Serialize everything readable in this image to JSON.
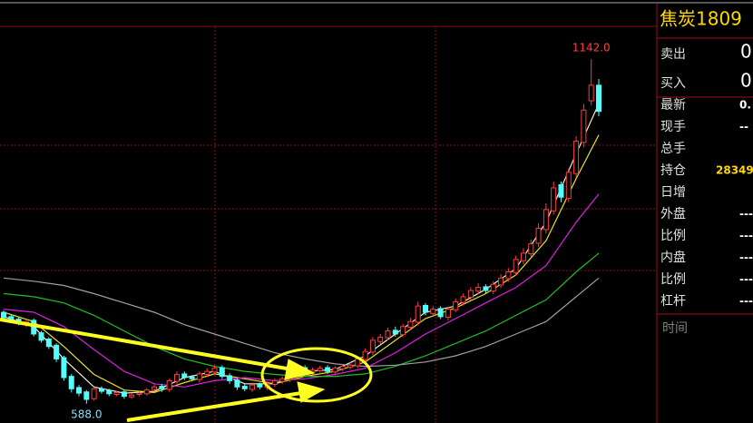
{
  "chart_data": {
    "type": "candlestick",
    "up_color": "#ff3c3c",
    "down_color": "#54fcfc",
    "ylim": [
      557,
      1237
    ],
    "open": [
      735,
      728,
      724,
      715,
      722,
      702,
      692,
      682,
      662,
      632,
      614,
      607,
      596,
      612,
      609,
      603,
      607,
      599,
      603,
      604,
      611,
      616,
      611,
      624,
      636,
      631,
      627,
      635,
      639,
      646,
      633,
      626,
      616,
      611,
      619,
      614,
      619,
      624,
      627,
      637,
      646,
      639,
      641,
      646,
      639,
      644,
      647,
      649,
      659,
      671,
      688,
      694,
      706,
      699,
      711,
      719,
      746,
      733,
      741,
      727,
      739,
      751,
      759,
      769,
      776,
      769,
      779,
      789,
      799,
      818,
      829,
      846,
      868,
      898,
      940,
      918,
      958,
      1008,
      1075,
      1100
    ],
    "high": [
      738,
      731,
      727,
      724,
      725,
      705,
      695,
      685,
      665,
      636,
      618,
      610,
      615,
      616,
      612,
      609,
      610,
      605,
      608,
      613,
      619,
      620,
      628,
      640,
      640,
      634,
      640,
      645,
      650,
      650,
      637,
      629,
      620,
      622,
      622,
      624,
      629,
      632,
      642,
      650,
      650,
      646,
      649,
      650,
      648,
      652,
      654,
      664,
      677,
      695,
      700,
      710,
      712,
      716,
      726,
      752,
      750,
      745,
      745,
      744,
      757,
      765,
      775,
      782,
      780,
      785,
      796,
      806,
      826,
      838,
      852,
      878,
      910,
      945,
      945,
      966,
      1018,
      1070,
      1142,
      1110
    ],
    "low": [
      722,
      718,
      714,
      711,
      696,
      686,
      676,
      655,
      625,
      606,
      600,
      588,
      593,
      604,
      600,
      600,
      596,
      596,
      600,
      601,
      608,
      607,
      607,
      620,
      626,
      624,
      622,
      631,
      635,
      628,
      620,
      610,
      608,
      607,
      611,
      610,
      615,
      620,
      623,
      633,
      636,
      635,
      638,
      636,
      635,
      640,
      643,
      645,
      655,
      666,
      684,
      690,
      696,
      695,
      706,
      714,
      730,
      729,
      724,
      722,
      735,
      746,
      754,
      764,
      765,
      764,
      774,
      784,
      794,
      812,
      824,
      840,
      862,
      892,
      912,
      912,
      952,
      1000,
      1068,
      1050
    ],
    "close": [
      726,
      722,
      718,
      720,
      700,
      690,
      680,
      660,
      630,
      612,
      605,
      595,
      612,
      608,
      604,
      606,
      600,
      602,
      605,
      610,
      615,
      612,
      625,
      635,
      630,
      628,
      636,
      640,
      645,
      632,
      625,
      615,
      612,
      618,
      615,
      620,
      625,
      628,
      638,
      645,
      640,
      642,
      645,
      640,
      645,
      648,
      650,
      660,
      672,
      690,
      695,
      705,
      700,
      712,
      720,
      745,
      735,
      740,
      728,
      740,
      752,
      760,
      770,
      775,
      770,
      780,
      790,
      800,
      820,
      830,
      845,
      870,
      900,
      935,
      920,
      960,
      1010,
      1060,
      1100,
      1058
    ],
    "moving_averages": [
      {
        "color": "#f0f0d0",
        "x": [
          0,
          4,
          8,
          12,
          16,
          20,
          24,
          28,
          32,
          36,
          40,
          44,
          48,
          52,
          56,
          60,
          64,
          68,
          72,
          76,
          79
        ],
        "values": [
          728,
          712,
          660,
          615,
          605,
          608,
          630,
          640,
          620,
          620,
          640,
          643,
          665,
          700,
          735,
          745,
          772,
          805,
          880,
          990,
          1070
        ]
      },
      {
        "color": "#e8e020",
        "x": [
          0,
          4,
          8,
          12,
          16,
          20,
          24,
          28,
          32,
          36,
          40,
          44,
          48,
          52,
          56,
          60,
          64,
          68,
          72,
          76,
          79
        ],
        "values": [
          735,
          720,
          680,
          635,
          610,
          606,
          622,
          636,
          628,
          620,
          632,
          640,
          655,
          690,
          725,
          742,
          765,
          795,
          850,
          950,
          1020
        ]
      },
      {
        "color": "#e020e0",
        "x": [
          0,
          4,
          8,
          12,
          16,
          20,
          24,
          28,
          32,
          36,
          40,
          44,
          48,
          52,
          56,
          60,
          64,
          68,
          72,
          76,
          79
        ],
        "values": [
          740,
          735,
          712,
          675,
          640,
          620,
          615,
          625,
          630,
          625,
          628,
          635,
          645,
          670,
          700,
          725,
          750,
          775,
          810,
          880,
          925
        ]
      },
      {
        "color": "#20c020",
        "x": [
          0,
          4,
          8,
          12,
          16,
          20,
          24,
          28,
          32,
          36,
          40,
          44,
          48,
          52,
          56,
          60,
          64,
          68,
          72,
          76,
          79
        ],
        "values": [
          765,
          760,
          750,
          730,
          705,
          680,
          660,
          648,
          640,
          635,
          632,
          632,
          636,
          648,
          665,
          685,
          705,
          730,
          755,
          800,
          830
        ]
      },
      {
        "color": "#a0a0a0",
        "x": [
          0,
          4,
          8,
          12,
          16,
          20,
          24,
          28,
          32,
          36,
          40,
          44,
          48,
          52,
          56,
          60,
          64,
          68,
          72,
          76,
          79
        ],
        "values": [
          790,
          785,
          778,
          765,
          750,
          735,
          715,
          700,
          685,
          670,
          660,
          652,
          648,
          650,
          655,
          665,
          680,
          700,
          720,
          760,
          790
        ]
      }
    ],
    "annotations": [
      {
        "label": "1142.0",
        "value": 1142,
        "x": 78,
        "color": "#ff4040"
      },
      {
        "label": "588.0",
        "value": 588,
        "x": 11,
        "color": "#80e0ff"
      }
    ]
  },
  "quote_panel": {
    "title": "焦炭1809",
    "rows": [
      {
        "label": "卖出",
        "value": "0"
      },
      {
        "label": "买入",
        "value": "0"
      },
      {
        "label": "最新",
        "value": "0."
      },
      {
        "label": "现手",
        "value": "--"
      },
      {
        "label": "总手",
        "value": ""
      },
      {
        "label": "持仓",
        "value": "28349"
      },
      {
        "label": "日增",
        "value": ""
      },
      {
        "label": "外盘",
        "value": "----"
      },
      {
        "label": "比例",
        "value": "----"
      },
      {
        "label": "内盘",
        "value": "----"
      },
      {
        "label": "比例",
        "value": "----"
      },
      {
        "label": "杠杆",
        "value": "----"
      }
    ],
    "time_label": "时间"
  }
}
